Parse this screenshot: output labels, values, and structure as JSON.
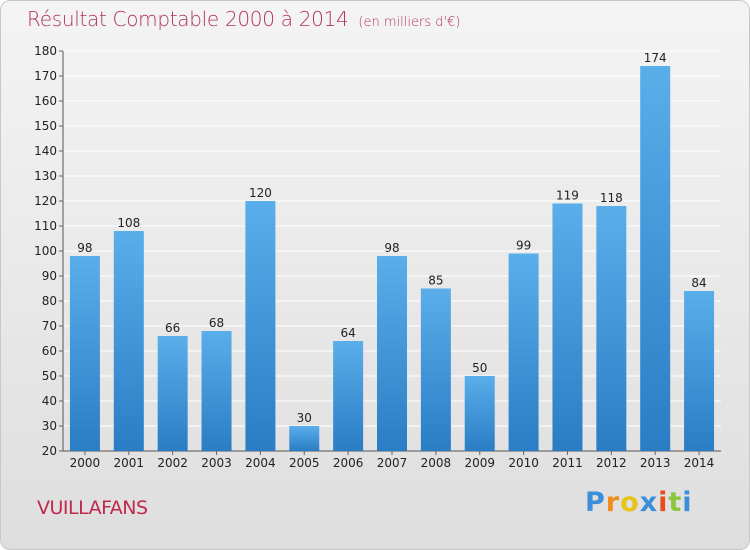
{
  "page": {
    "title": "Résultat Comptable 2000 à 2014",
    "unit": "(en milliers d'€)",
    "commune": "VUILLAFANS"
  },
  "logo": {
    "letters": [
      "P",
      "r",
      "o",
      "x",
      "i",
      "t",
      "i"
    ]
  },
  "colors": {
    "title": "#b0345a",
    "bar_top": "#5aaeea",
    "bar_bottom": "#2a7dc4",
    "grid": "#ffffff"
  },
  "chart_data": {
    "type": "bar",
    "title": "Résultat Comptable 2000 à 2014",
    "ylabel": "(en milliers d'€)",
    "xlabel": "",
    "categories": [
      "2000",
      "2001",
      "2002",
      "2003",
      "2004",
      "2005",
      "2006",
      "2007",
      "2008",
      "2009",
      "2010",
      "2011",
      "2012",
      "2013",
      "2014"
    ],
    "values": [
      98,
      108,
      66,
      68,
      120,
      30,
      64,
      98,
      85,
      50,
      99,
      119,
      118,
      174,
      84
    ],
    "ylim": [
      20,
      180
    ],
    "yticks": [
      20,
      30,
      40,
      50,
      60,
      70,
      80,
      90,
      100,
      110,
      120,
      130,
      140,
      150,
      160,
      170,
      180
    ],
    "grid": true
  }
}
